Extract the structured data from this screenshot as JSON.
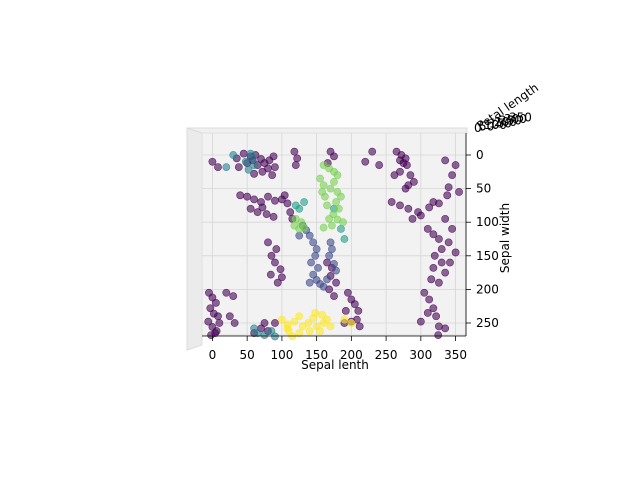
{
  "chart_data": {
    "type": "scatter",
    "projection": "3d",
    "xlabel": "Sepal lenth",
    "ylabel": "Sepal width",
    "zlabel": "Petal length",
    "x_ticks": [
      "0",
      "50",
      "100",
      "150",
      "200",
      "250",
      "300",
      "350"
    ],
    "y_ticks": [
      "0",
      "50",
      "100",
      "150",
      "200",
      "250"
    ],
    "xlim": [
      -15,
      365
    ],
    "ylim": [
      -10,
      275
    ],
    "grid": true,
    "legend": "none",
    "colors": {
      "dark_purple": "#440154",
      "indigo": "#3e4a89",
      "teal": "#26828e",
      "cyan": "#1f9e89",
      "green": "#7ad151",
      "yellow": "#fde725"
    },
    "clusters": [
      {
        "color": "dark_purple",
        "points": [
          [
            -5,
            205
          ],
          [
            0,
            212
          ],
          [
            5,
            220
          ],
          [
            -3,
            228
          ],
          [
            2,
            236
          ],
          [
            8,
            240
          ],
          [
            -6,
            248
          ],
          [
            0,
            256
          ],
          [
            6,
            262
          ],
          [
            -2,
            268
          ],
          [
            4,
            265
          ],
          [
            10,
            250
          ]
        ]
      },
      {
        "color": "dark_purple",
        "points": [
          [
            20,
            205
          ],
          [
            30,
            210
          ],
          [
            25,
            240
          ],
          [
            32,
            250
          ]
        ]
      },
      {
        "color": "dark_purple",
        "points": [
          [
            45,
            -2
          ],
          [
            55,
            2
          ],
          [
            58,
            8
          ],
          [
            62,
            0
          ],
          [
            70,
            6
          ],
          [
            75,
            12
          ],
          [
            65,
            15
          ],
          [
            82,
            8
          ],
          [
            88,
            2
          ],
          [
            90,
            18
          ],
          [
            50,
            12
          ],
          [
            80,
            20
          ],
          [
            72,
            25
          ],
          [
            60,
            28
          ],
          [
            86,
            30
          ]
        ]
      },
      {
        "color": "dark_purple",
        "points": [
          [
            0,
            10
          ],
          [
            8,
            18
          ],
          [
            35,
            5
          ],
          [
            38,
            18
          ]
        ]
      },
      {
        "color": "dark_purple",
        "points": [
          [
            40,
            60
          ],
          [
            50,
            62
          ],
          [
            60,
            66
          ],
          [
            70,
            70
          ],
          [
            80,
            62
          ],
          [
            90,
            68
          ],
          [
            100,
            66
          ],
          [
            108,
            72
          ],
          [
            65,
            85
          ],
          [
            78,
            88
          ],
          [
            88,
            92
          ],
          [
            104,
            60
          ],
          [
            112,
            85
          ],
          [
            115,
            95
          ],
          [
            55,
            80
          ],
          [
            72,
            78
          ]
        ]
      },
      {
        "color": "dark_purple",
        "points": [
          [
            80,
            130
          ],
          [
            92,
            140
          ],
          [
            85,
            150
          ],
          [
            90,
            160
          ],
          [
            98,
            170
          ],
          [
            100,
            182
          ],
          [
            84,
            178
          ],
          [
            94,
            190
          ]
        ]
      },
      {
        "color": "dark_purple",
        "points": [
          [
            60,
            265
          ],
          [
            70,
            258
          ],
          [
            80,
            262
          ],
          [
            90,
            250
          ],
          [
            75,
            250
          ]
        ]
      },
      {
        "color": "dark_purple",
        "points": [
          [
            118,
            -5
          ],
          [
            122,
            5
          ],
          [
            120,
            15
          ]
        ]
      },
      {
        "color": "dark_purple",
        "points": [
          [
            170,
            -5
          ],
          [
            175,
            2
          ],
          [
            166,
            12
          ]
        ]
      },
      {
        "color": "dark_purple",
        "points": [
          [
            165,
            160
          ],
          [
            172,
            168
          ],
          [
            170,
            180
          ],
          [
            178,
            190
          ],
          [
            168,
            200
          ],
          [
            175,
            210
          ]
        ]
      },
      {
        "color": "dark_purple",
        "points": [
          [
            195,
            205
          ],
          [
            200,
            215
          ],
          [
            205,
            222
          ],
          [
            210,
            232
          ],
          [
            208,
            245
          ],
          [
            212,
            255
          ],
          [
            200,
            248
          ],
          [
            192,
            232
          ],
          [
            190,
            250
          ]
        ]
      },
      {
        "color": "dark_purple",
        "points": [
          [
            220,
            10
          ],
          [
            230,
            -5
          ],
          [
            240,
            15
          ]
        ]
      },
      {
        "color": "dark_purple",
        "points": [
          [
            265,
            -5
          ],
          [
            272,
            0
          ],
          [
            278,
            5
          ],
          [
            270,
            8
          ],
          [
            275,
            12
          ],
          [
            280,
            15
          ],
          [
            270,
            25
          ],
          [
            285,
            30
          ],
          [
            262,
            30
          ],
          [
            290,
            40
          ],
          [
            282,
            45
          ],
          [
            278,
            50
          ]
        ]
      },
      {
        "color": "dark_purple",
        "points": [
          [
            258,
            70
          ],
          [
            270,
            75
          ],
          [
            282,
            80
          ],
          [
            296,
            85
          ],
          [
            312,
            78
          ],
          [
            300,
            90
          ],
          [
            288,
            95
          ],
          [
            318,
            70
          ],
          [
            326,
            72
          ]
        ]
      },
      {
        "color": "dark_purple",
        "points": [
          [
            310,
            110
          ],
          [
            318,
            118
          ],
          [
            326,
            125
          ],
          [
            330,
            140
          ],
          [
            320,
            150
          ],
          [
            330,
            160
          ],
          [
            318,
            168
          ],
          [
            335,
            175
          ],
          [
            315,
            185
          ],
          [
            326,
            190
          ]
        ]
      },
      {
        "color": "dark_purple",
        "points": [
          [
            305,
            205
          ],
          [
            312,
            215
          ],
          [
            318,
            228
          ],
          [
            322,
            240
          ],
          [
            326,
            255
          ],
          [
            310,
            235
          ],
          [
            300,
            248
          ],
          [
            335,
            258
          ],
          [
            325,
            268
          ]
        ]
      },
      {
        "color": "dark_purple",
        "points": [
          [
            335,
            8
          ],
          [
            350,
            15
          ],
          [
            345,
            30
          ],
          [
            340,
            48
          ],
          [
            355,
            55
          ],
          [
            338,
            60
          ]
        ]
      },
      {
        "color": "dark_purple",
        "points": [
          [
            335,
            95
          ],
          [
            345,
            110
          ],
          [
            340,
            130
          ],
          [
            350,
            145
          ],
          [
            342,
            160
          ]
        ]
      },
      {
        "color": "teal",
        "points": [
          [
            55,
            -2
          ],
          [
            58,
            5
          ],
          [
            60,
            15
          ],
          [
            48,
            10
          ],
          [
            52,
            22
          ],
          [
            30,
            0
          ],
          [
            20,
            18
          ]
        ]
      },
      {
        "color": "teal",
        "points": [
          [
            60,
            258
          ],
          [
            65,
            265
          ],
          [
            75,
            268
          ],
          [
            85,
            262
          ],
          [
            90,
            270
          ]
        ]
      },
      {
        "color": "cyan",
        "points": [
          [
            120,
            75
          ],
          [
            125,
            80
          ],
          [
            132,
            70
          ],
          [
            175,
            80
          ],
          [
            185,
            110
          ],
          [
            190,
            125
          ]
        ]
      },
      {
        "color": "indigo",
        "points": [
          [
            140,
            120
          ],
          [
            145,
            130
          ],
          [
            150,
            140
          ],
          [
            148,
            150
          ],
          [
            142,
            160
          ],
          [
            152,
            168
          ],
          [
            145,
            178
          ],
          [
            150,
            186
          ],
          [
            155,
            192
          ],
          [
            160,
            196
          ],
          [
            140,
            190
          ],
          [
            165,
            185
          ]
        ]
      },
      {
        "color": "indigo",
        "points": [
          [
            170,
            130
          ],
          [
            172,
            140
          ],
          [
            168,
            150
          ],
          [
            175,
            162
          ],
          [
            178,
            172
          ]
        ]
      },
      {
        "color": "indigo",
        "points": [
          [
            130,
            105
          ],
          [
            135,
            112
          ],
          [
            125,
            120
          ]
        ]
      },
      {
        "color": "green",
        "points": [
          [
            155,
            35
          ],
          [
            160,
            45
          ],
          [
            158,
            55
          ],
          [
            162,
            62
          ],
          [
            170,
            50
          ],
          [
            175,
            40
          ],
          [
            180,
            55
          ],
          [
            185,
            62
          ],
          [
            178,
            70
          ],
          [
            182,
            80
          ],
          [
            174,
            88
          ],
          [
            180,
            96
          ],
          [
            188,
            100
          ],
          [
            165,
            75
          ],
          [
            168,
            95
          ],
          [
            172,
            105
          ],
          [
            160,
            108
          ]
        ]
      },
      {
        "color": "green",
        "points": [
          [
            120,
            95
          ],
          [
            128,
            100
          ],
          [
            125,
            110
          ],
          [
            132,
            108
          ],
          [
            118,
            105
          ]
        ]
      },
      {
        "color": "green",
        "points": [
          [
            160,
            15
          ],
          [
            168,
            20
          ],
          [
            175,
            25
          ],
          [
            180,
            30
          ]
        ]
      },
      {
        "color": "yellow",
        "points": [
          [
            100,
            245
          ],
          [
            108,
            252
          ],
          [
            110,
            262
          ],
          [
            118,
            248
          ],
          [
            125,
            240
          ],
          [
            130,
            255
          ],
          [
            138,
            250
          ],
          [
            145,
            243
          ],
          [
            150,
            255
          ],
          [
            155,
            262
          ],
          [
            160,
            250
          ],
          [
            148,
            235
          ],
          [
            158,
            238
          ],
          [
            165,
            245
          ],
          [
            170,
            255
          ],
          [
            140,
            262
          ],
          [
            125,
            265
          ],
          [
            115,
            270
          ],
          [
            108,
            258
          ]
        ]
      },
      {
        "color": "yellow",
        "points": [
          [
            190,
            245
          ],
          [
            200,
            250
          ]
        ]
      }
    ],
    "z_ticks_overlap": [
      "0",
      "50",
      "100",
      "150",
      "200",
      "250",
      "300",
      "350"
    ]
  }
}
